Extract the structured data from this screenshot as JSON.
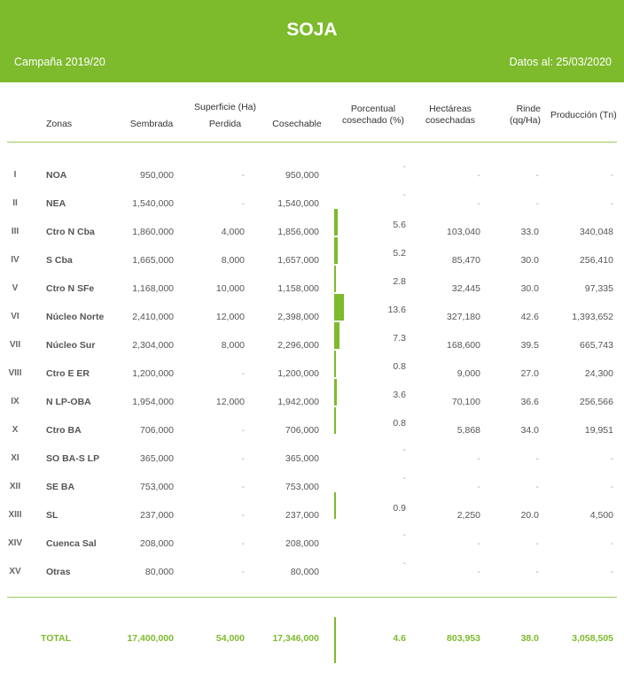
{
  "header": {
    "title": "SOJA",
    "campaign": "Campaña 2019/20",
    "date": "Datos al: 25/03/2020"
  },
  "columns": {
    "zonas": "Zonas",
    "superficie": "Superficie (Ha)",
    "sembrada": "Sembrada",
    "perdida": "Perdida",
    "cosechable": "Cosechable",
    "porcentual_1": "Porcentual",
    "porcentual_2": "cosechado (%)",
    "hectareas_1": "Hectáreas",
    "hectareas_2": "cosechadas",
    "rinde_1": "Rinde",
    "rinde_2": "(qq/Ha)",
    "produccion": "Producción (Tn)"
  },
  "rows": [
    {
      "num": "I",
      "zone": "NOA",
      "sembrada": "950,000",
      "perdida": "-",
      "cosechable": "950,000",
      "pct": "-",
      "pct_value": 0,
      "hectareas": "-",
      "rinde": "-",
      "produccion": "-"
    },
    {
      "num": "II",
      "zone": "NEA",
      "sembrada": "1,540,000",
      "perdida": "-",
      "cosechable": "1,540,000",
      "pct": "-",
      "pct_value": 0,
      "hectareas": "-",
      "rinde": "-",
      "produccion": "-"
    },
    {
      "num": "III",
      "zone": "Ctro N Cba",
      "sembrada": "1,860,000",
      "perdida": "4,000",
      "cosechable": "1,856,000",
      "pct": "5.6",
      "pct_value": 5.6,
      "hectareas": "103,040",
      "rinde": "33.0",
      "produccion": "340,048"
    },
    {
      "num": "IV",
      "zone": "S Cba",
      "sembrada": "1,665,000",
      "perdida": "8,000",
      "cosechable": "1,657,000",
      "pct": "5.2",
      "pct_value": 5.2,
      "hectareas": "85,470",
      "rinde": "30.0",
      "produccion": "256,410"
    },
    {
      "num": "V",
      "zone": "Ctro N SFe",
      "sembrada": "1,168,000",
      "perdida": "10,000",
      "cosechable": "1,158,000",
      "pct": "2.8",
      "pct_value": 2.8,
      "hectareas": "32,445",
      "rinde": "30.0",
      "produccion": "97,335"
    },
    {
      "num": "VI",
      "zone": "Núcleo Norte",
      "sembrada": "2,410,000",
      "perdida": "12,000",
      "cosechable": "2,398,000",
      "pct": "13.6",
      "pct_value": 13.6,
      "hectareas": "327,180",
      "rinde": "42.6",
      "produccion": "1,393,652"
    },
    {
      "num": "VII",
      "zone": "Núcleo Sur",
      "sembrada": "2,304,000",
      "perdida": "8,000",
      "cosechable": "2,296,000",
      "pct": "7.3",
      "pct_value": 7.3,
      "hectareas": "168,600",
      "rinde": "39.5",
      "produccion": "665,743"
    },
    {
      "num": "VIII",
      "zone": "Ctro E ER",
      "sembrada": "1,200,000",
      "perdida": "-",
      "cosechable": "1,200,000",
      "pct": "0.8",
      "pct_value": 0.8,
      "hectareas": "9,000",
      "rinde": "27.0",
      "produccion": "24,300"
    },
    {
      "num": "IX",
      "zone": "N LP-OBA",
      "sembrada": "1,954,000",
      "perdida": "12,000",
      "cosechable": "1,942,000",
      "pct": "3.6",
      "pct_value": 3.6,
      "hectareas": "70,100",
      "rinde": "36.6",
      "produccion": "256,566"
    },
    {
      "num": "X",
      "zone": "Ctro BA",
      "sembrada": "706,000",
      "perdida": "-",
      "cosechable": "706,000",
      "pct": "0.8",
      "pct_value": 0.8,
      "hectareas": "5,868",
      "rinde": "34.0",
      "produccion": "19,951"
    },
    {
      "num": "XI",
      "zone": "SO BA-S LP",
      "sembrada": "365,000",
      "perdida": "-",
      "cosechable": "365,000",
      "pct": "-",
      "pct_value": 0,
      "hectareas": "-",
      "rinde": "-",
      "produccion": "-"
    },
    {
      "num": "XII",
      "zone": "SE BA",
      "sembrada": "753,000",
      "perdida": "-",
      "cosechable": "753,000",
      "pct": "-",
      "pct_value": 0,
      "hectareas": "-",
      "rinde": "-",
      "produccion": "-"
    },
    {
      "num": "XIII",
      "zone": "SL",
      "sembrada": "237,000",
      "perdida": "-",
      "cosechable": "237,000",
      "pct": "0.9",
      "pct_value": 0.9,
      "hectareas": "2,250",
      "rinde": "20.0",
      "produccion": "4,500"
    },
    {
      "num": "XIV",
      "zone": "Cuenca Sal",
      "sembrada": "208,000",
      "perdida": "-",
      "cosechable": "208,000",
      "pct": "-",
      "pct_value": 0,
      "hectareas": "-",
      "rinde": "-",
      "produccion": "-"
    },
    {
      "num": "XV",
      "zone": "Otras",
      "sembrada": "80,000",
      "perdida": "-",
      "cosechable": "80,000",
      "pct": "-",
      "pct_value": 0,
      "hectareas": "-",
      "rinde": "-",
      "produccion": "-"
    }
  ],
  "total": {
    "label": "TOTAL",
    "sembrada": "17,400,000",
    "perdida": "54,000",
    "cosechable": "17,346,000",
    "pct": "4.6",
    "pct_value": 4.6,
    "hectareas": "803,953",
    "rinde": "38.0",
    "produccion": "3,058,505"
  },
  "colors": {
    "accent": "#7dba2c",
    "banner_text": "#ffffff"
  }
}
